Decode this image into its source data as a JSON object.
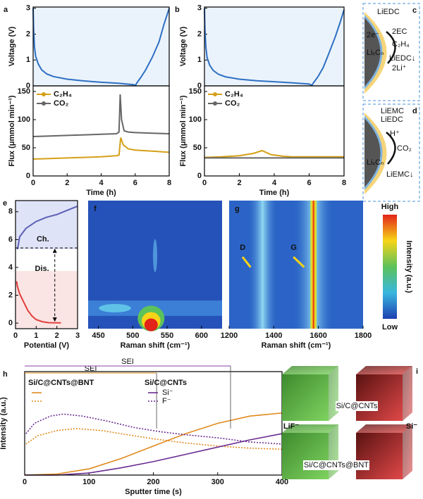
{
  "chart_data": [
    {
      "type": "line",
      "label": "a",
      "ylabel": "Voltage (V)",
      "xlim": [
        0,
        8
      ],
      "ylim": [
        0,
        3.05
      ],
      "yticks": [
        0,
        1,
        2,
        3
      ],
      "background": "#eaf3fb",
      "series": [
        {
          "color": "#2e6fc4",
          "x": [
            0,
            0.03,
            0.08,
            0.15,
            0.3,
            0.5,
            0.8,
            1.2,
            2,
            3,
            4,
            5,
            5.9,
            6.02,
            6.1,
            6.3,
            6.6,
            7,
            7.4,
            7.7,
            8
          ],
          "values": [
            3,
            2.2,
            1.5,
            1.15,
            0.85,
            0.62,
            0.46,
            0.36,
            0.26,
            0.19,
            0.14,
            0.1,
            0.05,
            0.02,
            0.12,
            0.3,
            0.6,
            1.1,
            1.7,
            2.4,
            3
          ]
        }
      ]
    },
    {
      "type": "line",
      "ylabel": "Flux (μmmol min⁻¹)",
      "xlabel": "Time (h)",
      "xlim": [
        0,
        8
      ],
      "ylim": [
        0,
        160
      ],
      "xticks": [
        0,
        2,
        4,
        6,
        8
      ],
      "yticks": [
        0,
        50,
        100,
        150
      ],
      "legend": "upper left",
      "series": [
        {
          "name": "C₂H₄",
          "color": "#d4a017",
          "x": [
            0,
            1,
            2,
            3,
            4,
            4.9,
            5.05,
            5.15,
            5.3,
            5.6,
            6,
            7,
            8
          ],
          "values": [
            30,
            31,
            32,
            33,
            34,
            36,
            37,
            68,
            55,
            48,
            46,
            44,
            42
          ]
        },
        {
          "name": "CO₂",
          "color": "#666666",
          "x": [
            0,
            1,
            2,
            3,
            4,
            4.9,
            5.05,
            5.12,
            5.2,
            5.35,
            5.6,
            6,
            7,
            8
          ],
          "values": [
            70,
            71,
            72,
            73,
            74,
            75,
            78,
            145,
            100,
            80,
            78,
            77,
            76,
            75
          ]
        }
      ]
    },
    {
      "type": "line",
      "label": "b",
      "ylabel": "Voltage (V)",
      "xlim": [
        0,
        8
      ],
      "ylim": [
        0,
        3.05
      ],
      "yticks": [
        0,
        1,
        2,
        3
      ],
      "background": "#eaf3fb",
      "series": [
        {
          "color": "#2e6fc4",
          "x": [
            0,
            0.03,
            0.08,
            0.15,
            0.3,
            0.5,
            0.8,
            1.2,
            2,
            3,
            4,
            5,
            6,
            6.15,
            6.25,
            6.5,
            6.8,
            7.1,
            7.5,
            7.8,
            8
          ],
          "values": [
            3,
            2.2,
            1.5,
            1.1,
            0.8,
            0.6,
            0.45,
            0.35,
            0.26,
            0.2,
            0.16,
            0.12,
            0.07,
            0.02,
            0.12,
            0.35,
            0.7,
            1.2,
            1.9,
            2.5,
            2.95
          ]
        }
      ]
    },
    {
      "type": "line",
      "ylabel": "Flux (μmmol min⁻¹)",
      "xlabel": "Time (h)",
      "xlim": [
        0,
        8
      ],
      "ylim": [
        0,
        160
      ],
      "xticks": [
        0,
        2,
        4,
        6,
        8
      ],
      "yticks": [
        0,
        50,
        100,
        150
      ],
      "legend": "upper left",
      "series": [
        {
          "name": "C₂H₄",
          "color": "#d4a017",
          "x": [
            0,
            1,
            2,
            2.8,
            3.3,
            3.8,
            4.5,
            5,
            6,
            7,
            8
          ],
          "values": [
            33,
            34,
            36,
            40,
            45,
            38,
            35,
            34,
            34,
            34,
            34
          ]
        },
        {
          "name": "CO₂",
          "color": "#666666",
          "x": [
            0,
            2,
            4,
            6,
            8
          ],
          "values": [
            32,
            32,
            32,
            32,
            32
          ]
        }
      ]
    },
    {
      "type": "line",
      "label": "e",
      "xlabel": "Potential (V)",
      "xlim": [
        0,
        3
      ],
      "ylim": [
        -0.4,
        8.8
      ],
      "xticks": [
        0,
        1,
        2,
        3
      ],
      "yticks": [
        0,
        2,
        4,
        6,
        8
      ],
      "annotations": [
        "Ch.",
        "Dis."
      ],
      "reference_lines": {
        "y": 5.4,
        "x": 1.9
      },
      "series": [
        {
          "color": "#5b5fb5",
          "x": [
            0.1,
            0.2,
            0.5,
            1,
            1.5,
            2,
            2.5,
            3
          ],
          "values": [
            5.3,
            6.2,
            6.8,
            7.3,
            7.6,
            7.8,
            8.1,
            8.4
          ]
        },
        {
          "color": "#e0403c",
          "x": [
            0.05,
            0.1,
            0.2,
            0.4,
            0.6,
            0.8,
            1,
            1.3,
            1.6,
            2.2
          ],
          "values": [
            3,
            2.6,
            2.1,
            1.5,
            0.9,
            0.5,
            0.25,
            0.1,
            0.03,
            0.02
          ]
        }
      ]
    },
    {
      "type": "heatmap",
      "label": "f",
      "xlabel": "Raman shift (cm⁻¹)",
      "xlim": [
        435,
        630
      ],
      "xticks": [
        450,
        500,
        550,
        600
      ]
    },
    {
      "type": "heatmap",
      "label": "g",
      "xlabel": "Raman shift (cm⁻¹)",
      "xlim": [
        1200,
        1800
      ],
      "xticks": [
        1200,
        1400,
        1600,
        1800
      ],
      "annotations": [
        "D",
        "G"
      ],
      "colorbar": {
        "high": "High",
        "label": "Intensity (a.u.)",
        "low": "Low"
      }
    },
    {
      "type": "line",
      "label": "h",
      "xlabel": "Sputter time (s)",
      "ylabel": "Intensity (a.u.)",
      "xlim": [
        0,
        400
      ],
      "ylim": [
        0,
        1
      ],
      "xticks": [
        0,
        100,
        200,
        300,
        400
      ],
      "legend_groups": [
        "Si/C@CNTs@BNT",
        "Si/C@CNTs"
      ],
      "sei": [
        {
          "label": "SEI",
          "color": "#e08a1e",
          "x_end": 205
        },
        {
          "label": "SEI",
          "color": "#8b3fa8",
          "x_end": 320
        }
      ],
      "series": [
        {
          "group": 0,
          "color": "#e08a1e",
          "x": [
            0,
            50,
            100,
            150,
            200,
            250,
            300,
            350,
            400
          ],
          "values": [
            0,
            0.01,
            0.06,
            0.16,
            0.28,
            0.4,
            0.5,
            0.57,
            0.6
          ]
        },
        {
          "group": 0,
          "color": "#e08a1e",
          "dash": true,
          "x": [
            2,
            20,
            50,
            80,
            120,
            160,
            200,
            250,
            300,
            350,
            400
          ],
          "values": [
            0.3,
            0.38,
            0.43,
            0.45,
            0.43,
            0.39,
            0.35,
            0.31,
            0.28,
            0.26,
            0.25
          ]
        },
        {
          "group": 1,
          "name": "Si⁻",
          "color": "#6a2c91",
          "x": [
            0,
            50,
            100,
            150,
            200,
            250,
            300,
            350,
            400
          ],
          "values": [
            0,
            0,
            0.02,
            0.07,
            0.13,
            0.2,
            0.27,
            0.34,
            0.4
          ]
        },
        {
          "group": 1,
          "name": "F⁻",
          "color": "#6a2c91",
          "dash": true,
          "x": [
            2,
            15,
            40,
            60,
            90,
            130,
            170,
            210,
            250,
            300,
            350,
            400
          ],
          "values": [
            0.4,
            0.5,
            0.57,
            0.59,
            0.57,
            0.52,
            0.46,
            0.42,
            0.39,
            0.36,
            0.32,
            0.3
          ]
        }
      ]
    }
  ],
  "diagram_c": {
    "label": "c",
    "texts": [
      "LiEDC",
      "2e⁻",
      "2EC",
      "C₂H₄",
      "LiₓCₙ",
      "LiEDC↓",
      "2Li⁺"
    ]
  },
  "diagram_d": {
    "label": "d",
    "texts": [
      "LiEMC",
      "LiEDC",
      "H⁺",
      "CO₂",
      "LiₓCₙ",
      "LiEMC↓"
    ]
  },
  "panel_i": {
    "label": "i",
    "texts": [
      "Si/C@CNTs",
      "Si/C@CNTs@BNT"
    ],
    "left": "LiF⁻",
    "right": "Si⁻"
  }
}
